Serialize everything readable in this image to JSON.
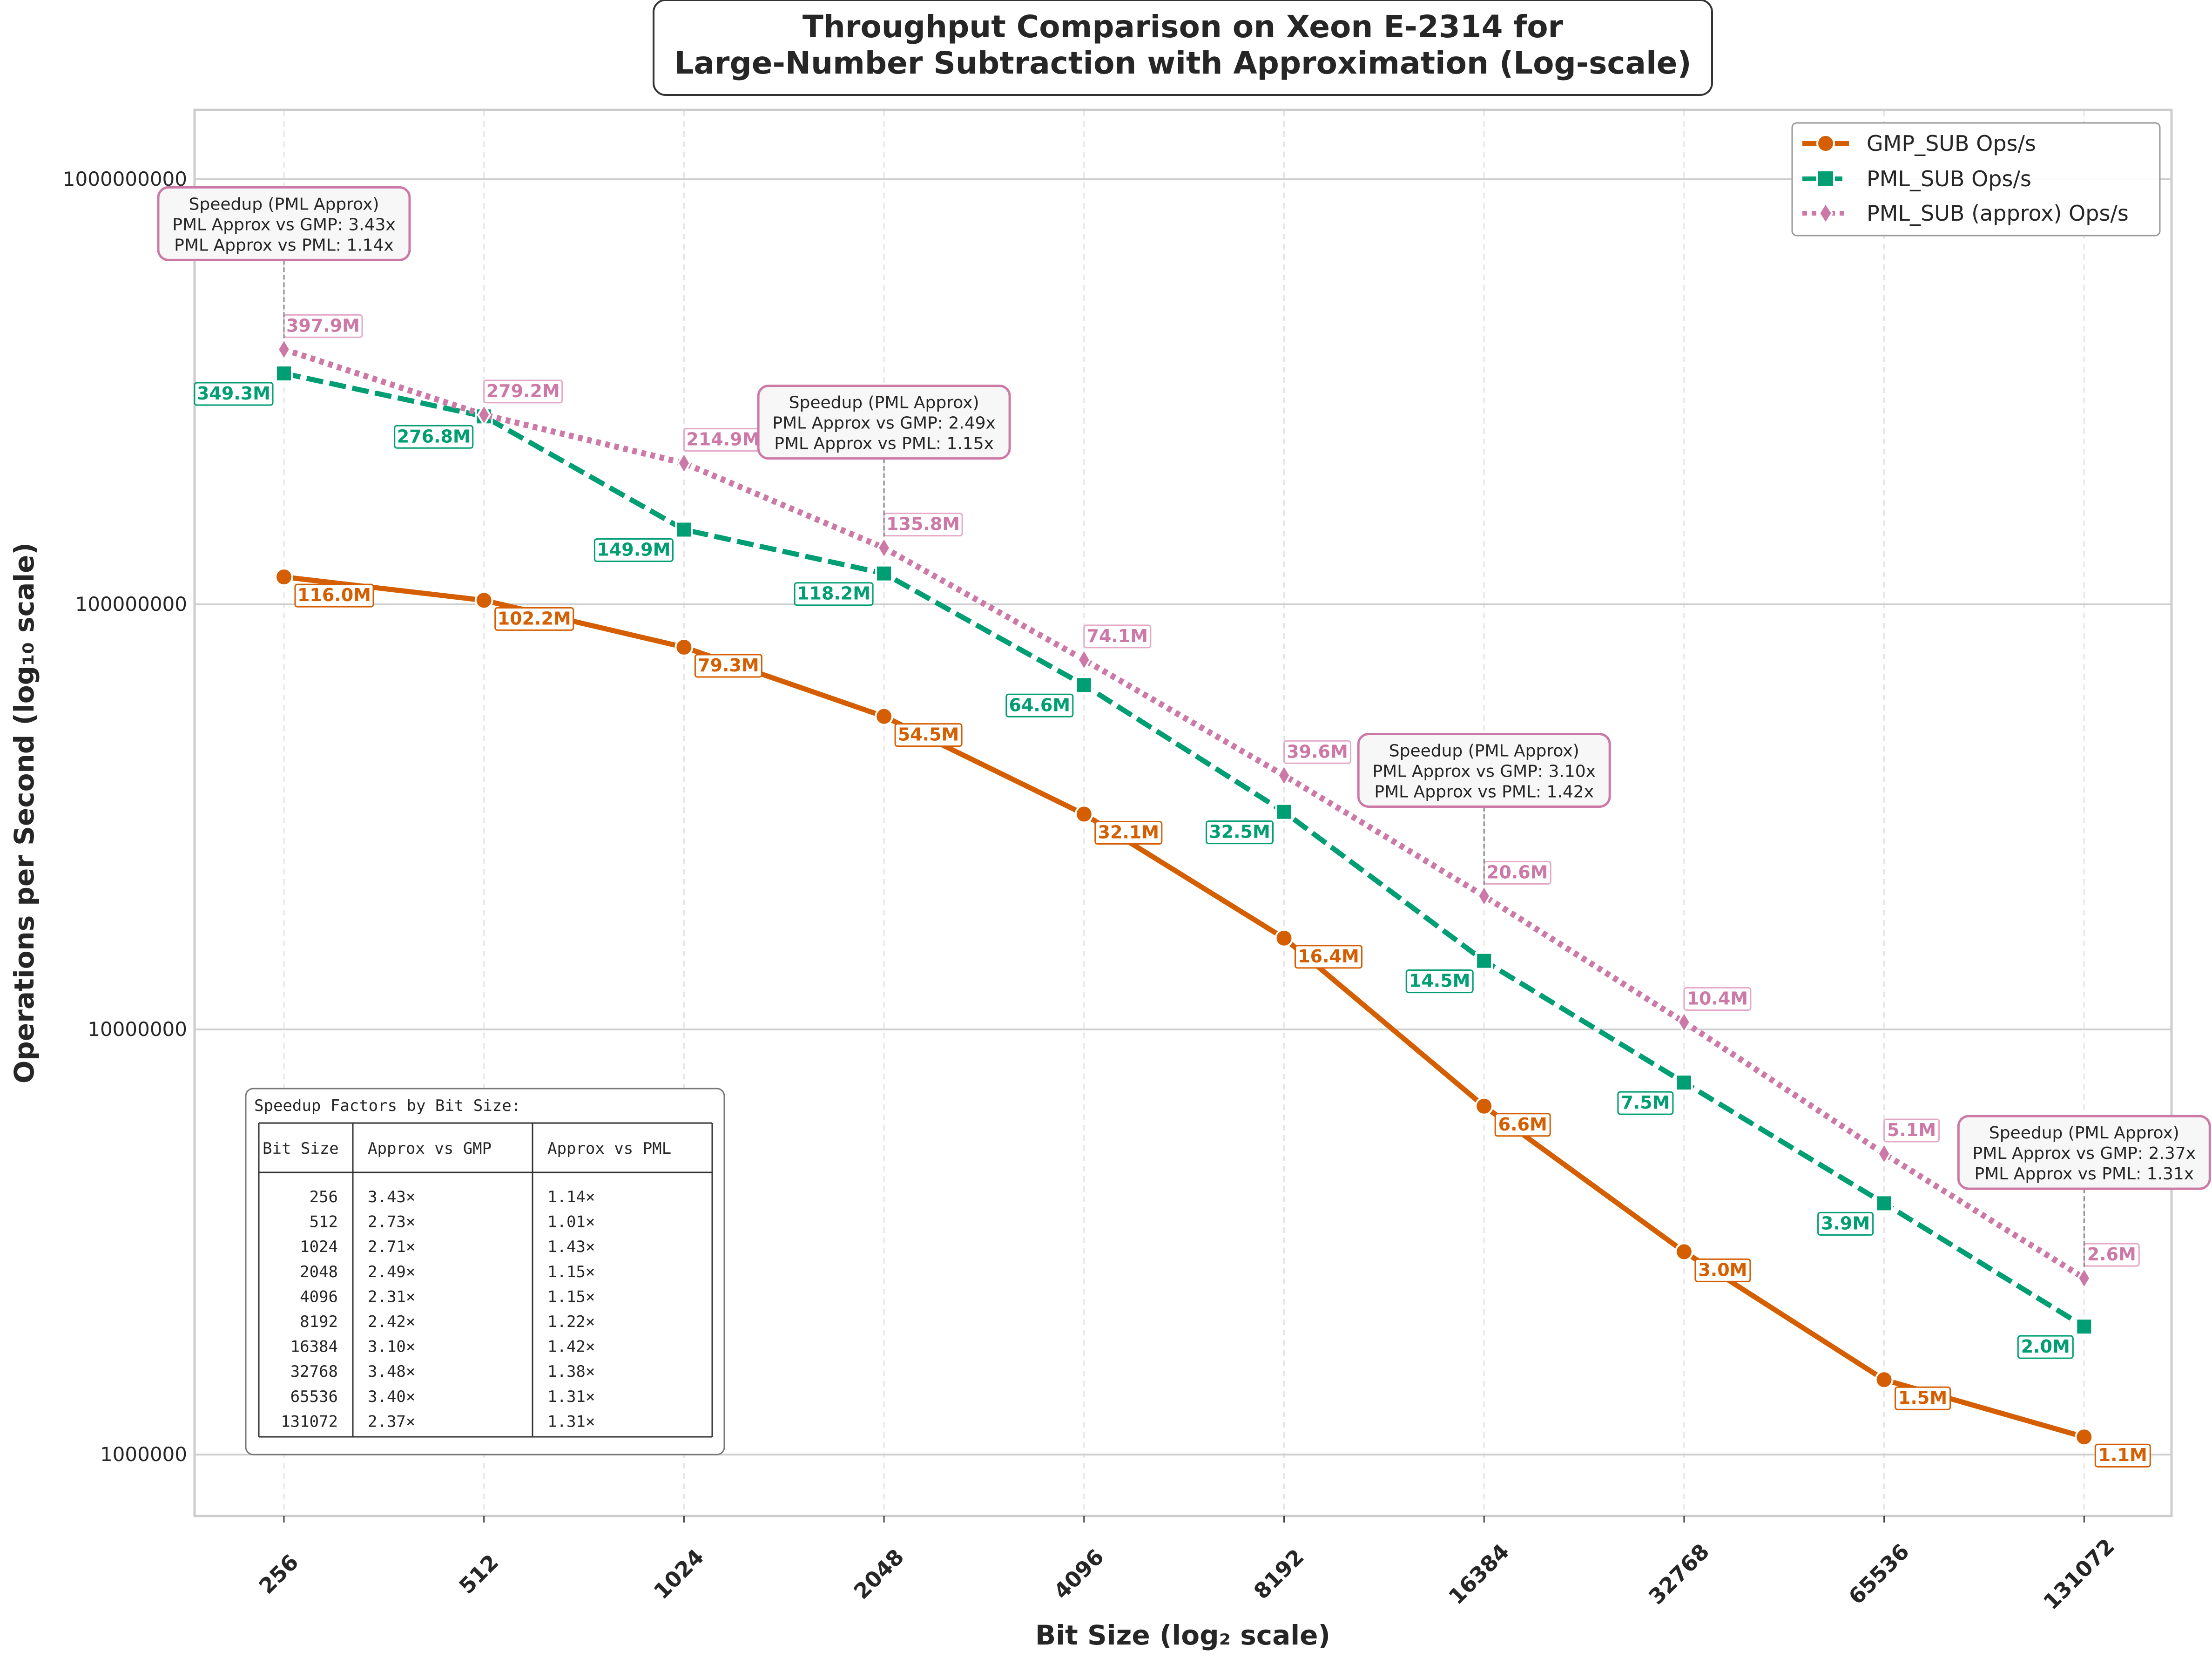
{
  "chart_data": {
    "type": "line",
    "title_lines": [
      "Throughput Comparison on Xeon E-2314 for",
      "Large-Number Subtraction with Approximation (Log-scale)"
    ],
    "xlabel": "Bit Size (log₂ scale)",
    "ylabel": "Operations per Second (log₁₀ scale)",
    "x_scale": "log2",
    "y_scale": "log10",
    "ylim": [
      700000,
      1400000000
    ],
    "y_ticks": [
      1000000,
      10000000,
      100000000,
      1000000000
    ],
    "y_tick_labels": [
      "1000000",
      "10000000",
      "100000000",
      "1000000000"
    ],
    "grid": true,
    "legend_position": "top-right",
    "x": [
      256,
      512,
      1024,
      2048,
      4096,
      8192,
      16384,
      32768,
      65536,
      131072
    ],
    "x_tick_labels": [
      "256",
      "512",
      "1024",
      "2048",
      "4096",
      "8192",
      "16384",
      "32768",
      "65536",
      "131072"
    ],
    "series": [
      {
        "name": "GMP_SUB Ops/s",
        "color": "#d55e00",
        "marker": "circle",
        "line_style": "solid",
        "values": [
          116000000,
          102200000,
          79300000,
          54500000,
          32100000,
          16400000,
          6600000,
          3000000,
          1500000,
          1100000
        ],
        "labels": [
          "116.0M",
          "102.2M",
          "79.3M",
          "54.5M",
          "32.1M",
          "16.4M",
          "6.6M",
          "3.0M",
          "1.5M",
          "1.1M"
        ]
      },
      {
        "name": "PML_SUB Ops/s",
        "color": "#009e73",
        "marker": "square",
        "line_style": "dashed",
        "values": [
          349300000,
          276800000,
          149900000,
          118200000,
          64600000,
          32500000,
          14500000,
          7500000,
          3900000,
          2000000
        ],
        "labels": [
          "349.3M",
          "276.8M",
          "149.9M",
          "118.2M",
          "64.6M",
          "32.5M",
          "14.5M",
          "7.5M",
          "3.9M",
          "2.0M"
        ]
      },
      {
        "name": "PML_SUB (approx) Ops/s",
        "color": "#cc79a7",
        "marker": "diamond",
        "line_style": "dotted",
        "values": [
          397900000,
          279200000,
          214900000,
          135800000,
          74100000,
          39600000,
          20600000,
          10400000,
          5100000,
          2600000
        ],
        "labels": [
          "397.9M",
          "279.2M",
          "214.9M",
          "135.8M",
          "74.1M",
          "39.6M",
          "20.6M",
          "10.4M",
          "5.1M",
          "2.6M"
        ]
      }
    ],
    "annotations": [
      {
        "x": 256,
        "y": 397900000,
        "lines": [
          "Speedup (PML Approx)",
          "PML Approx vs GMP: 3.43x",
          "PML Approx vs PML: 1.14x"
        ]
      },
      {
        "x": 2048,
        "y": 135800000,
        "lines": [
          "Speedup (PML Approx)",
          "PML Approx vs GMP: 2.49x",
          "PML Approx vs PML: 1.15x"
        ]
      },
      {
        "x": 16384,
        "y": 20600000,
        "lines": [
          "Speedup (PML Approx)",
          "PML Approx vs GMP: 3.10x",
          "PML Approx vs PML: 1.42x"
        ]
      },
      {
        "x": 131072,
        "y": 2600000,
        "lines": [
          "Speedup (PML Approx)",
          "PML Approx vs GMP: 2.37x",
          "PML Approx vs PML: 1.31x"
        ]
      }
    ],
    "speedup_table": {
      "title": "Speedup Factors by Bit Size:",
      "headers": [
        "Bit Size",
        "Approx vs GMP",
        "Approx vs PML"
      ],
      "rows": [
        [
          "256",
          "3.43×",
          "1.14×"
        ],
        [
          "512",
          "2.73×",
          "1.01×"
        ],
        [
          "1024",
          "2.71×",
          "1.43×"
        ],
        [
          "2048",
          "2.49×",
          "1.15×"
        ],
        [
          "4096",
          "2.31×",
          "1.15×"
        ],
        [
          "8192",
          "2.42×",
          "1.22×"
        ],
        [
          "16384",
          "3.10×",
          "1.42×"
        ],
        [
          "32768",
          "3.48×",
          "1.38×"
        ],
        [
          "65536",
          "3.40×",
          "1.31×"
        ],
        [
          "131072",
          "2.37×",
          "1.31×"
        ]
      ]
    }
  }
}
